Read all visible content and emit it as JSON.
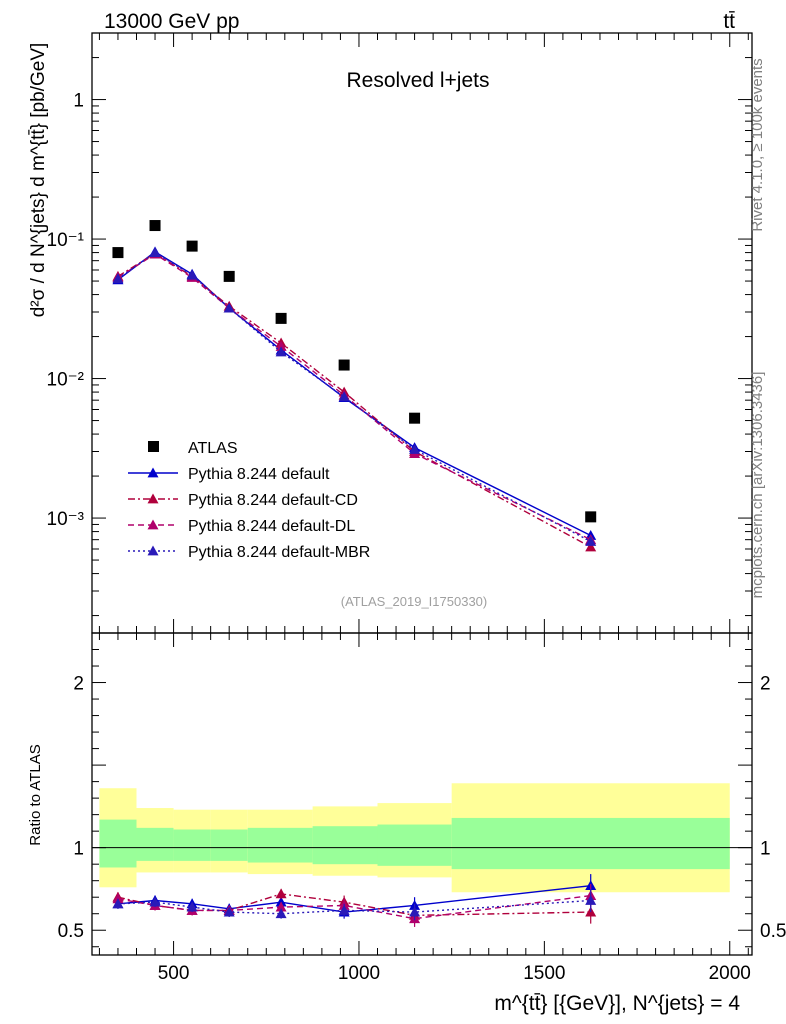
{
  "header": {
    "energy_label": "13000 GeV pp",
    "process_label": "tt̄"
  },
  "side_labels": {
    "rivet": "Rivet 4.1.0, ≥ 100k events",
    "mcplots": "mcplots.cern.ch [arXiv:1306.3436]"
  },
  "chart_data": [
    {
      "type": "scatter",
      "title": "Resolved l+jets",
      "analysis_id": "(ATLAS_2019_I1750330)",
      "ylabel": "d²σ / d N^{jets} d m^{tt̄} [pb/GeV]",
      "yscale": "log",
      "ylim": [
        0.00015,
        3.0
      ],
      "xlim": [
        280,
        2060
      ],
      "y_ticks": [
        {
          "value": 1,
          "label": "1"
        },
        {
          "value": 0.1,
          "label": "10⁻¹"
        },
        {
          "value": 0.01,
          "label": "10⁻²"
        },
        {
          "value": 0.001,
          "label": "10⁻³"
        }
      ],
      "x": [
        350,
        450,
        550,
        650,
        790,
        960,
        1150,
        1625
      ],
      "x_bins": [
        [
          300,
          400
        ],
        [
          400,
          500
        ],
        [
          500,
          600
        ],
        [
          600,
          700
        ],
        [
          700,
          875
        ],
        [
          875,
          1050
        ],
        [
          1050,
          1250
        ],
        [
          1250,
          2000
        ]
      ],
      "series": [
        {
          "name": "ATLAS",
          "marker": "square",
          "color": "#000000",
          "values": [
            0.08,
            0.125,
            0.089,
            0.054,
            0.027,
            0.0125,
            0.0052,
            0.00102
          ]
        },
        {
          "name": "Pythia 8.244 default",
          "marker": "triangle",
          "line": "solid",
          "color": "#0000cc",
          "values": [
            0.051,
            0.081,
            0.056,
            0.032,
            0.016,
            0.0073,
            0.0032,
            0.00075
          ]
        },
        {
          "name": "Pythia 8.244 default-CD",
          "marker": "triangle",
          "line": "dashdot",
          "color": "#b0003c",
          "values": [
            0.054,
            0.079,
            0.054,
            0.033,
            0.018,
            0.008,
            0.003,
            0.00062
          ]
        },
        {
          "name": "Pythia 8.244 default-DL",
          "marker": "triangle",
          "line": "dashed",
          "color": "#b0006c",
          "values": [
            0.053,
            0.078,
            0.053,
            0.032,
            0.017,
            0.0076,
            0.0029,
            0.0007
          ]
        },
        {
          "name": "Pythia 8.244 default-MBR",
          "marker": "triangle",
          "line": "dotted",
          "color": "#2a1ab8",
          "values": [
            0.052,
            0.08,
            0.055,
            0.032,
            0.0155,
            0.0074,
            0.0031,
            0.00068
          ]
        }
      ]
    },
    {
      "type": "scatter",
      "title": "",
      "ylabel": "Ratio to ATLAS",
      "xlabel": "m^{tt̄} [{GeV}], N^{jets} = 4",
      "ylim": [
        0.35,
        2.3
      ],
      "xlim": [
        280,
        2060
      ],
      "y_ticks": [
        {
          "value": 0.5,
          "label": "0.5"
        },
        {
          "value": 1,
          "label": "1"
        },
        {
          "value": 2,
          "label": "2"
        }
      ],
      "x_ticks": [
        {
          "value": 500,
          "label": "500"
        },
        {
          "value": 1000,
          "label": "1000"
        },
        {
          "value": 1500,
          "label": "1500"
        },
        {
          "value": 2000,
          "label": "2000"
        }
      ],
      "uncertainty_bands": {
        "bins": [
          [
            300,
            400
          ],
          [
            400,
            500
          ],
          [
            500,
            600
          ],
          [
            600,
            700
          ],
          [
            700,
            875
          ],
          [
            875,
            1050
          ],
          [
            1050,
            1250
          ],
          [
            1250,
            2000
          ]
        ],
        "inner_green": [
          [
            0.88,
            1.17
          ],
          [
            0.92,
            1.12
          ],
          [
            0.92,
            1.11
          ],
          [
            0.92,
            1.11
          ],
          [
            0.91,
            1.12
          ],
          [
            0.9,
            1.13
          ],
          [
            0.89,
            1.14
          ],
          [
            0.87,
            1.18
          ]
        ],
        "outer_yellow": [
          [
            0.76,
            1.36
          ],
          [
            0.85,
            1.24
          ],
          [
            0.85,
            1.23
          ],
          [
            0.85,
            1.23
          ],
          [
            0.84,
            1.23
          ],
          [
            0.83,
            1.25
          ],
          [
            0.82,
            1.27
          ],
          [
            0.73,
            1.39
          ]
        ]
      },
      "x": [
        350,
        450,
        550,
        650,
        790,
        960,
        1150,
        1625
      ],
      "series": [
        {
          "name": "Pythia 8.244 default",
          "color": "#0000cc",
          "line": "solid",
          "values": [
            0.66,
            0.68,
            0.66,
            0.63,
            0.67,
            0.61,
            0.65,
            0.77
          ],
          "errors": [
            0.03,
            0.03,
            0.03,
            0.03,
            0.03,
            0.04,
            0.05,
            0.07
          ]
        },
        {
          "name": "Pythia 8.244 default-CD",
          "color": "#b0003c",
          "line": "dashdot",
          "values": [
            0.7,
            0.65,
            0.62,
            0.62,
            0.72,
            0.67,
            0.59,
            0.61
          ],
          "errors": [
            0.03,
            0.03,
            0.03,
            0.03,
            0.03,
            0.04,
            0.05,
            0.07
          ]
        },
        {
          "name": "Pythia 8.244 default-DL",
          "color": "#b0006c",
          "line": "dashed",
          "values": [
            0.69,
            0.65,
            0.62,
            0.62,
            0.64,
            0.65,
            0.57,
            0.71
          ],
          "errors": [
            0.03,
            0.03,
            0.03,
            0.03,
            0.03,
            0.04,
            0.05,
            0.07
          ]
        },
        {
          "name": "Pythia 8.244 default-MBR",
          "color": "#2a1ab8",
          "line": "dotted",
          "values": [
            0.66,
            0.67,
            0.64,
            0.61,
            0.6,
            0.62,
            0.61,
            0.68
          ],
          "errors": [
            0.03,
            0.03,
            0.03,
            0.03,
            0.03,
            0.04,
            0.05,
            0.07
          ]
        }
      ]
    }
  ]
}
